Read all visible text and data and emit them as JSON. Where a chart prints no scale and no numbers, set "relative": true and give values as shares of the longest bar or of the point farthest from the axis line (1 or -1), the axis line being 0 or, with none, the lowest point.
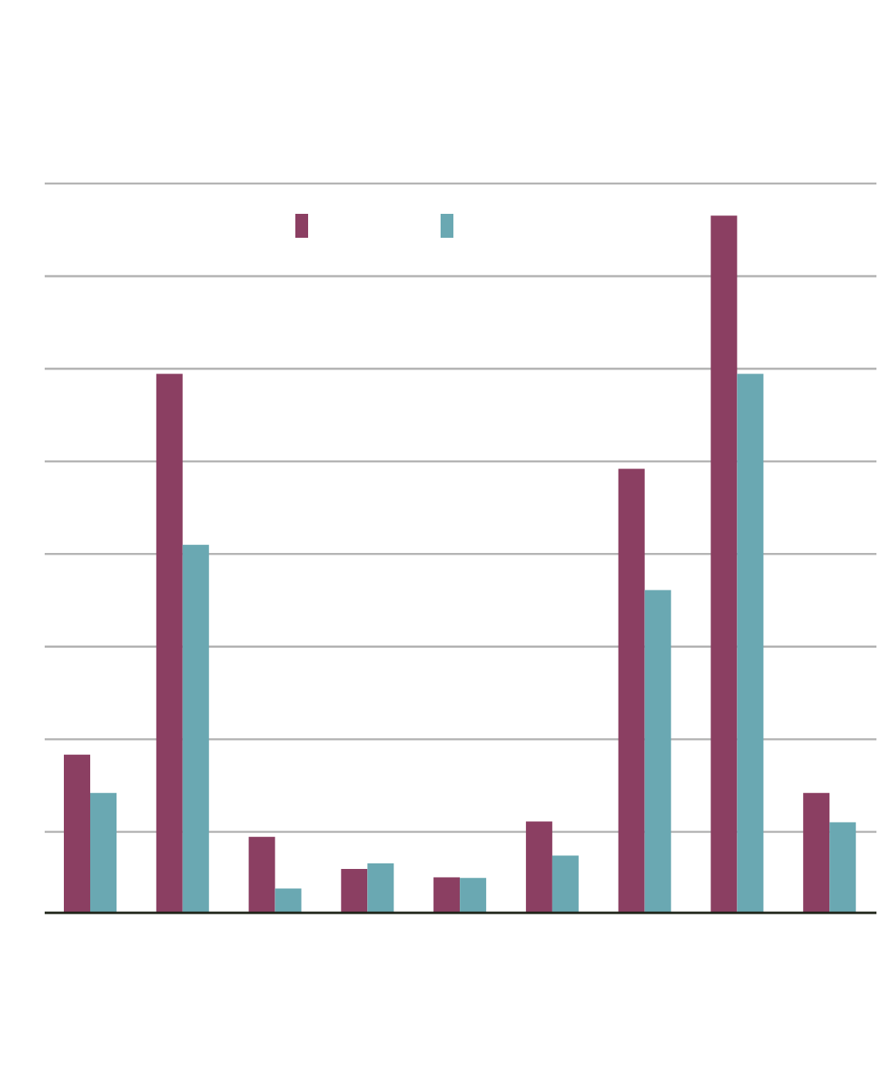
{
  "chart_data": {
    "type": "bar",
    "relative": true,
    "categories": [
      null,
      null,
      null,
      null,
      null,
      null,
      null,
      null,
      null
    ],
    "series": [
      {
        "color": "#8b3f62",
        "values": [
          0.227,
          0.773,
          0.109,
          0.063,
          0.051,
          0.131,
          0.637,
          1,
          0.172
        ]
      },
      {
        "color": "#6aa8b2",
        "values": [
          0.172,
          0.528,
          0.035,
          0.071,
          0.05,
          0.082,
          0.463,
          0.773,
          0.13
        ]
      }
    ],
    "grid": true
  }
}
